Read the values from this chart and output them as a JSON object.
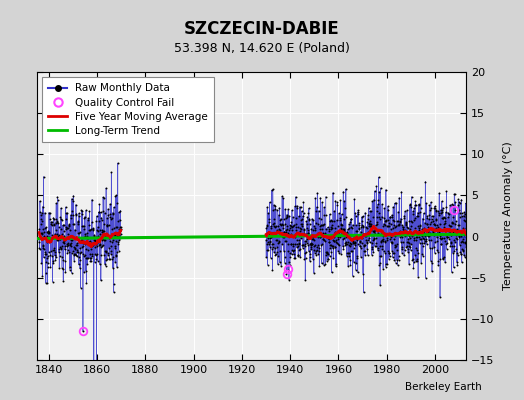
{
  "title": "SZCZECIN-DABIE",
  "subtitle": "53.398 N, 14.620 E (Poland)",
  "ylabel": "Temperature Anomaly (°C)",
  "credit": "Berkeley Earth",
  "xlim": [
    1835,
    2013
  ],
  "ylim": [
    -15,
    20
  ],
  "yticks": [
    -15,
    -10,
    -5,
    0,
    5,
    10,
    15,
    20
  ],
  "xticks": [
    1840,
    1860,
    1880,
    1900,
    1920,
    1940,
    1960,
    1980,
    2000
  ],
  "bg_color": "#e8e8e8",
  "plot_bg": "#f0f0f0",
  "data_color_blue": "#3333cc",
  "ma_color": "#dd0000",
  "trend_color": "#00bb00",
  "qc_color": "#ff44ff",
  "period1_start": 1836,
  "period1_end": 1870,
  "period2_start": 1930,
  "period2_end": 2013,
  "qc_points": [
    [
      1854,
      -11.5
    ],
    [
      1938.5,
      -4.5
    ],
    [
      1939.2,
      -4.0
    ],
    [
      2008,
      3.2
    ]
  ],
  "trend_x": [
    1835,
    2013
  ],
  "trend_y": [
    -0.25,
    0.28
  ]
}
